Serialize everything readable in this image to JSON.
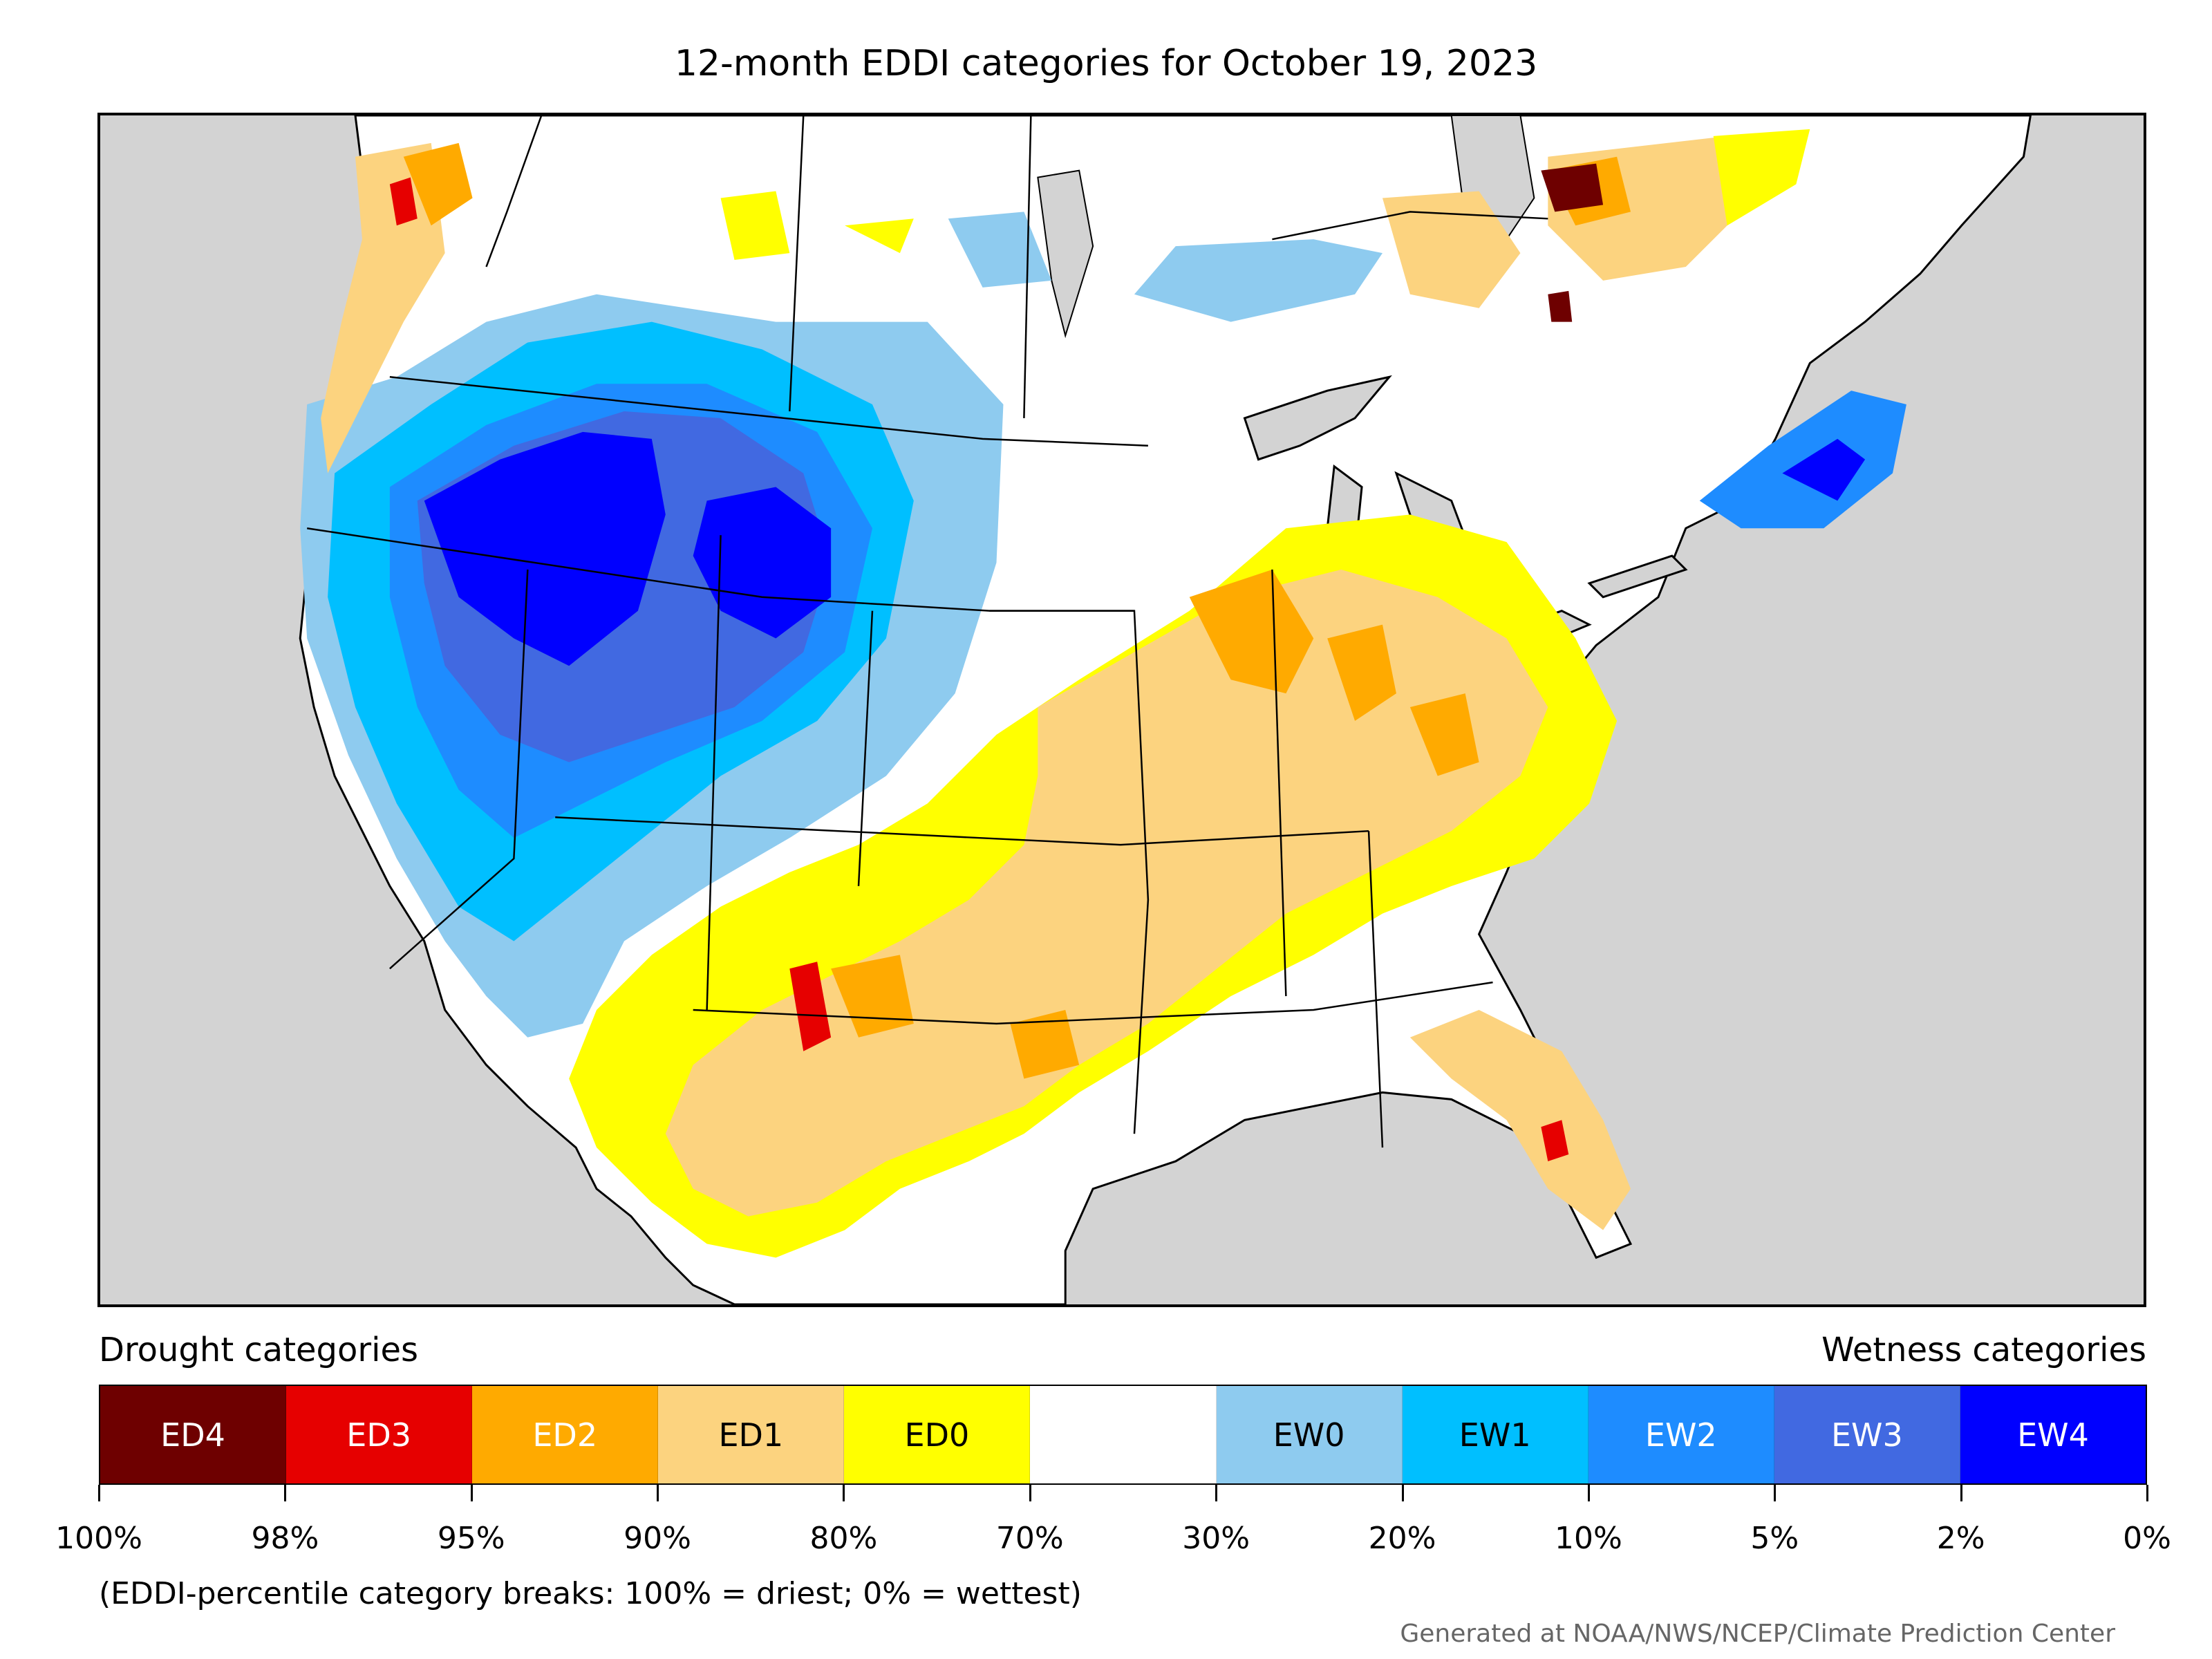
{
  "title": "12-month EDDI categories for October 19, 2023",
  "legend": {
    "drought_heading": "Drought categories",
    "wetness_heading": "Wetness categories",
    "categories": [
      {
        "label": "ED4",
        "color": "#6e0000",
        "text_color": "#ffffff"
      },
      {
        "label": "ED3",
        "color": "#e60000",
        "text_color": "#ffffff"
      },
      {
        "label": "ED2",
        "color": "#ffaa00",
        "text_color": "#ffffff"
      },
      {
        "label": "ED1",
        "color": "#fcd37f",
        "text_color": "#000000"
      },
      {
        "label": "ED0",
        "color": "#ffff00",
        "text_color": "#000000"
      },
      {
        "label": "",
        "color": "#ffffff",
        "text_color": "#000000"
      },
      {
        "label": "EW0",
        "color": "#8ecbef",
        "text_color": "#000000"
      },
      {
        "label": "EW1",
        "color": "#00bfff",
        "text_color": "#000000"
      },
      {
        "label": "EW2",
        "color": "#1e8cff",
        "text_color": "#ffffff"
      },
      {
        "label": "EW3",
        "color": "#4169e1",
        "text_color": "#ffffff"
      },
      {
        "label": "EW4",
        "color": "#0000ff",
        "text_color": "#ffffff"
      }
    ],
    "tick_labels": [
      "100%",
      "98%",
      "95%",
      "90%",
      "80%",
      "70%",
      "30%",
      "20%",
      "10%",
      "5%",
      "2%",
      "0%"
    ]
  },
  "note": "(EDDI-percentile category breaks: 100% = driest; 0% = wettest)",
  "credit": "Generated at NOAA/NWS/NCEP/Climate Prediction Center",
  "map": {
    "ocean_color": "#d3d3d3",
    "land_color": "#ffffff",
    "border_color": "#000000"
  }
}
